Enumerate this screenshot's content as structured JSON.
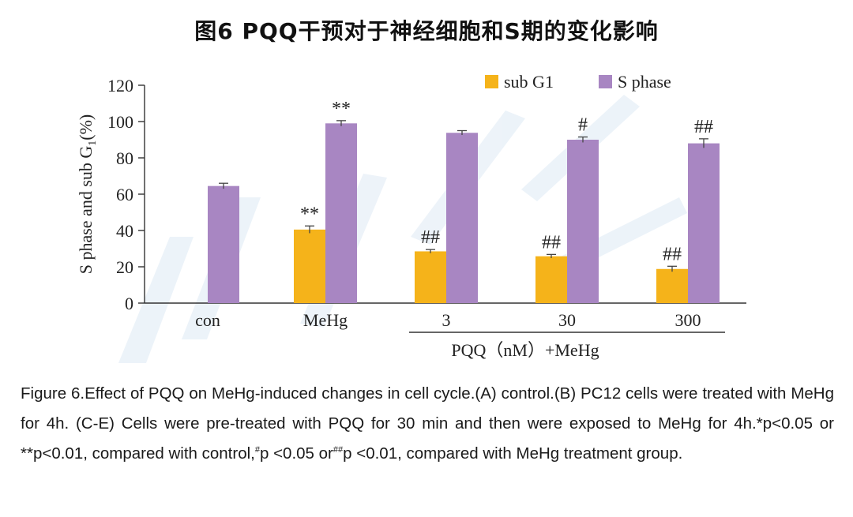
{
  "figure_title": "图6 PQQ干预对于神经细胞和S期的变化影响",
  "chart_data": {
    "type": "bar",
    "categories": [
      "con",
      "MeHg",
      "3",
      "30",
      "300"
    ],
    "group_label": "PQQ（nM）+MeHg",
    "ylabel_prefix": "S phase and sub G",
    "ylabel_sub": "1",
    "ylabel_suffix": "(%)",
    "ylim": [
      0,
      120
    ],
    "yticks": [
      "0",
      "20",
      "40",
      "60",
      "80",
      "100",
      "120"
    ],
    "legend_position": "top-right",
    "series": [
      {
        "name": "sub G1",
        "color": "#f5b31a",
        "values": [
          0,
          40.5,
          28.5,
          25.8,
          18.8
        ],
        "errors": [
          0,
          2.0,
          1.0,
          1.0,
          1.5
        ],
        "annotations": [
          "",
          "**",
          "##",
          "##",
          "##"
        ]
      },
      {
        "name": "S phase",
        "color": "#a886c2",
        "values": [
          64.5,
          99,
          93.8,
          90,
          88
        ],
        "errors": [
          1.5,
          1.5,
          1.2,
          1.5,
          2.5
        ],
        "annotations": [
          "",
          "**",
          "",
          "#",
          "##"
        ]
      }
    ]
  },
  "caption": {
    "t1": "Figure 6.Effect of PQQ on MeHg-induced changes in cell cycle.(A) control.(B) PC12 cells were treated with MeHg for 4h. (C-E) Cells were pre-treated with PQQ for 30 min and then were exposed to MeHg for 4h.*p<0.05 or **p<0.01, compared with control,",
    "sup1": "#",
    "t2": "p <0.05 or",
    "sup2": "##",
    "t3": "p <0.01, compared with MeHg treatment group."
  }
}
